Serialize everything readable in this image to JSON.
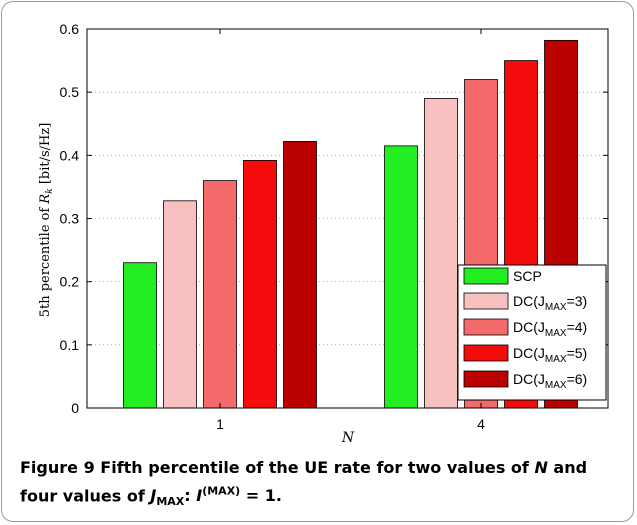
{
  "chart_data": {
    "type": "bar",
    "categories": [
      "1",
      "4"
    ],
    "series": [
      {
        "name": "SCP",
        "values": [
          0.23,
          0.415
        ]
      },
      {
        "name": "DC(J_MAX=3)",
        "values": [
          0.328,
          0.49
        ]
      },
      {
        "name": "DC(J_MAX=4)",
        "values": [
          0.36,
          0.52
        ]
      },
      {
        "name": "DC(J_MAX=5)",
        "values": [
          0.392,
          0.55
        ]
      },
      {
        "name": "DC(J_MAX=6)",
        "values": [
          0.422,
          0.582
        ]
      }
    ],
    "colors": [
      "#22ee22",
      "#f9c0c0",
      "#f46a6a",
      "#f40b0b",
      "#bb0000"
    ],
    "legend_text": {
      "scp": "SCP",
      "dc_prefix": "DC(J",
      "dc_sub": "MAX",
      "j3": "=3)",
      "j4": "=4)",
      "j5": "=5)",
      "j6": "=6)"
    },
    "ylim": [
      0,
      0.6
    ],
    "yticks": [
      "0",
      "0.1",
      "0.2",
      "0.3",
      "0.4",
      "0.5",
      "0.6"
    ],
    "xlabel": "N",
    "ylabel": "5th percentile of R̄k [bit/s/Hz]",
    "ylabel_parts": {
      "pre": "5th percentile of ",
      "R": "R",
      "k": "k",
      "post": " [bit/s/Hz]"
    },
    "grid": true,
    "legend_position": "bottom-right"
  },
  "caption": {
    "label": "Figure 9",
    "text_a": " Fifth percentile of the UE rate for two values of ",
    "N": "N",
    "text_b": " and",
    "text_c": "four values of ",
    "J": "J",
    "sub": "MAX",
    "colon": ": ",
    "I": "I",
    "sup": "(MAX)",
    "eq": " = 1."
  }
}
